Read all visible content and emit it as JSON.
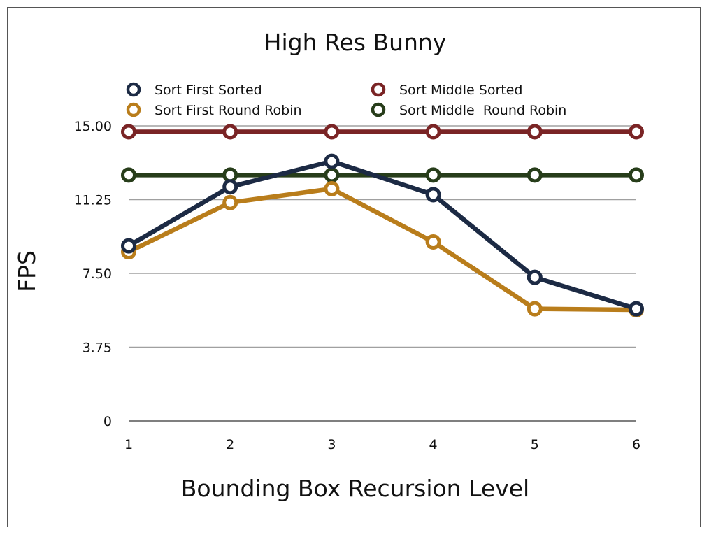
{
  "chart_data": {
    "type": "line",
    "title": "High Res Bunny",
    "xlabel": "Bounding Box Recursion Level",
    "ylabel": "FPS",
    "x": [
      1,
      2,
      3,
      4,
      5,
      6
    ],
    "x_tick_labels": [
      "1",
      "2",
      "3",
      "4",
      "5",
      "6"
    ],
    "ylim": [
      0,
      15
    ],
    "y_ticks": [
      0,
      3.75,
      7.5,
      11.25,
      15
    ],
    "y_tick_labels": [
      "0",
      "3.75",
      "7.50",
      "11.25",
      "15.00"
    ],
    "grid": "horizontal",
    "legend_position": "top",
    "series": [
      {
        "name": "Sort First Sorted",
        "color": "#1c2a44",
        "values": [
          8.9,
          11.9,
          13.2,
          11.5,
          7.3,
          5.7
        ]
      },
      {
        "name": "Sort Middle Sorted",
        "color": "#7a2425",
        "values": [
          14.7,
          14.7,
          14.7,
          14.7,
          14.7,
          14.7
        ]
      },
      {
        "name": "Sort First Round Robin",
        "color": "#b97d1b",
        "values": [
          8.6,
          11.1,
          11.8,
          9.1,
          5.7,
          5.65
        ]
      },
      {
        "name": "Sort Middle  Round Robin",
        "color": "#273d1a",
        "values": [
          12.5,
          12.5,
          12.5,
          12.5,
          12.5,
          12.5
        ]
      }
    ],
    "series_draw_order": [
      1,
      3,
      2,
      0
    ]
  }
}
